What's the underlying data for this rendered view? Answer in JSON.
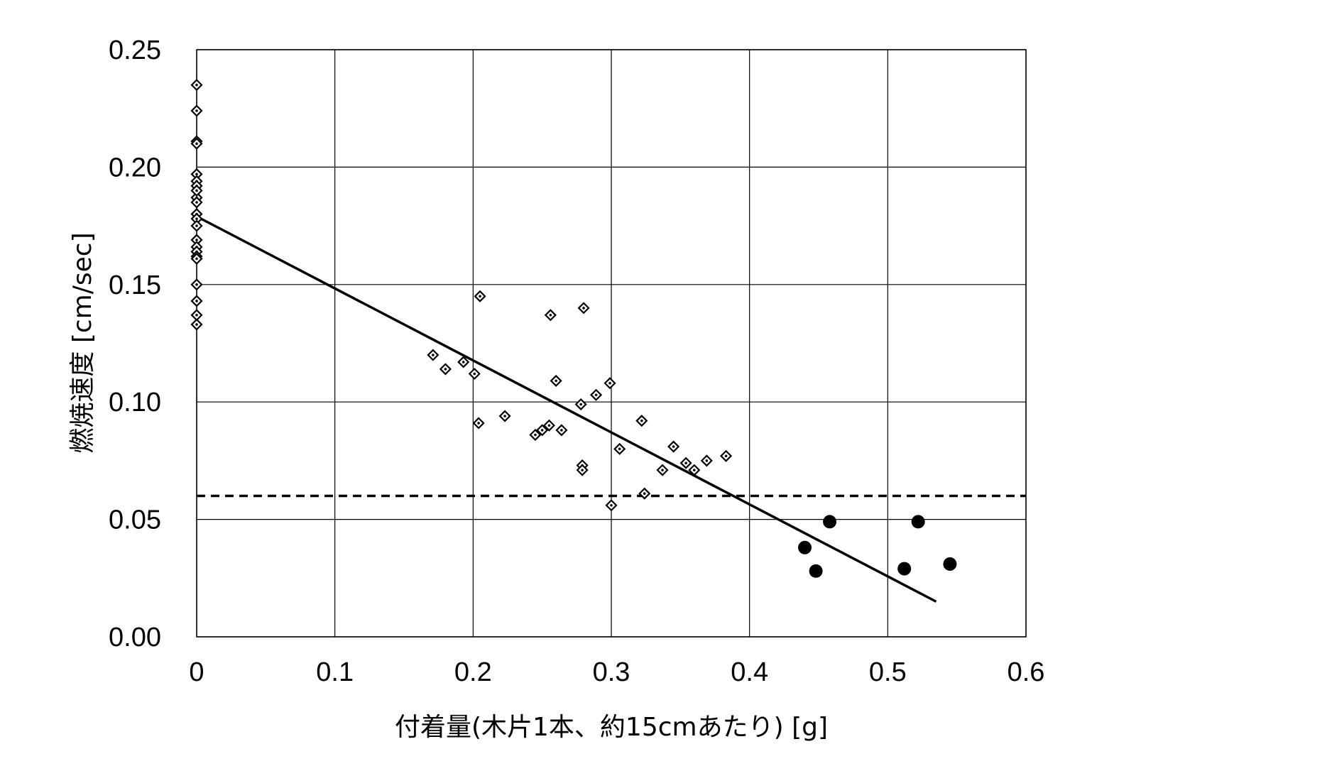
{
  "chart_data": {
    "type": "scatter",
    "title": "",
    "xlabel": "付着量(木片1本、約15cmあたり) [g]",
    "ylabel": "燃焼速度 [cm/sec]",
    "xlim": [
      0,
      0.6
    ],
    "ylim": [
      0,
      0.25
    ],
    "x_ticks": [
      "0",
      "0.1",
      "0.2",
      "0.3",
      "0.4",
      "0.5",
      "0.6"
    ],
    "y_ticks": [
      "0.00",
      "0.05",
      "0.10",
      "0.15",
      "0.20",
      "0.25"
    ],
    "grid": true,
    "legend": "none",
    "series": [
      {
        "marker": "diamond",
        "x": [
          0,
          0,
          0,
          0,
          0,
          0,
          0,
          0,
          0,
          0,
          0,
          0,
          0,
          0,
          0,
          0,
          0,
          0,
          0,
          0,
          0,
          0,
          0.171,
          0.18,
          0.193,
          0.201,
          0.205,
          0.204,
          0.223,
          0.245,
          0.25,
          0.255,
          0.256,
          0.26,
          0.264,
          0.278,
          0.279,
          0.279,
          0.28,
          0.289,
          0.299,
          0.3,
          0.306,
          0.322,
          0.324,
          0.337,
          0.345,
          0.354,
          0.36,
          0.369,
          0.383
        ],
        "y": [
          0.235,
          0.224,
          0.211,
          0.21,
          0.197,
          0.194,
          0.192,
          0.187,
          0.185,
          0.18,
          0.178,
          0.169,
          0.166,
          0.164,
          0.162,
          0.15,
          0.143,
          0.137,
          0.133,
          0.161,
          0.19,
          0.175,
          0.12,
          0.114,
          0.117,
          0.112,
          0.145,
          0.091,
          0.094,
          0.086,
          0.088,
          0.09,
          0.137,
          0.109,
          0.088,
          0.099,
          0.073,
          0.071,
          0.14,
          0.103,
          0.108,
          0.056,
          0.08,
          0.092,
          0.061,
          0.071,
          0.081,
          0.074,
          0.071,
          0.075,
          0.077
        ]
      },
      {
        "marker": "circle",
        "x": [
          0.44,
          0.448,
          0.458,
          0.512,
          0.522,
          0.545
        ],
        "y": [
          0.038,
          0.028,
          0.049,
          0.029,
          0.049,
          0.031
        ]
      }
    ],
    "trendline": {
      "x": [
        0,
        0.535
      ],
      "y": [
        0.179,
        0.015
      ]
    },
    "reference_line": {
      "y": 0.06,
      "style": "dashed"
    },
    "colors": {
      "ink": "#000000",
      "grid": "#000000",
      "marker_fill": "#ffffff"
    }
  }
}
